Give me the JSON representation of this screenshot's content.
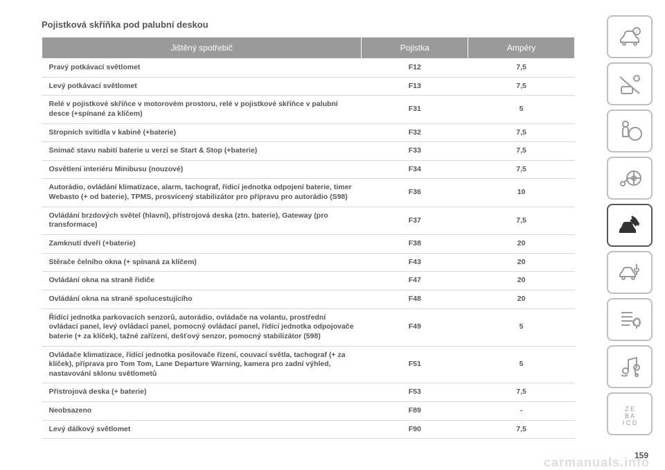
{
  "title": "Pojistková skříňka pod palubní deskou",
  "headers": {
    "device": "Jištěný spotřebič",
    "fuse": "Pojistka",
    "amp": "Ampéry"
  },
  "rows": [
    {
      "device": "Pravý potkávací světlomet",
      "fuse": "F12",
      "amp": "7,5"
    },
    {
      "device": "Levý potkávací světlomet",
      "fuse": "F13",
      "amp": "7,5"
    },
    {
      "device": "Relé v pojistkové skříňce v motorovém prostoru, relé v pojistkové skříňce v palubní desce (+spínané za klíčem)",
      "fuse": "F31",
      "amp": "5"
    },
    {
      "device": "Stropních svítidla v kabině (+baterie)",
      "fuse": "F32",
      "amp": "7,5"
    },
    {
      "device": "Snímač stavu nabití baterie u verzí se Start & Stop (+baterie)",
      "fuse": "F33",
      "amp": "7,5"
    },
    {
      "device": "Osvětlení interiéru Minibusu (nouzové)",
      "fuse": "F34",
      "amp": "7,5"
    },
    {
      "device": "Autorádio, ovládání klimatizace, alarm, tachograf, řídicí jednotka odpojení baterie, timer Webasto (+ od baterie), TPMS, prosvícený stabilizátor pro přípravu pro autorádio (S98)",
      "fuse": "F36",
      "amp": "10"
    },
    {
      "device": "Ovládání brzdových světel (hlavní), přístrojová deska (ztn. baterie), Gateway (pro transformace)",
      "fuse": "F37",
      "amp": "7,5"
    },
    {
      "device": "Zamknutí dveří (+baterie)",
      "fuse": "F38",
      "amp": "20"
    },
    {
      "device": "Stěrače čelního okna (+ spínaná za klíčem)",
      "fuse": "F43",
      "amp": "20"
    },
    {
      "device": "Ovládání okna na straně řidiče",
      "fuse": "F47",
      "amp": "20"
    },
    {
      "device": "Ovládání okna na straně spolucestujícího",
      "fuse": "F48",
      "amp": "20"
    },
    {
      "device": "Řídící jednotka parkovacích senzorů, autorádio, ovládače na volantu, prostřední ovládací panel, levý ovládací panel, pomocný ovládací panel, řídící jednotka odpojovače baterie (+ za klíček), tažné zařízení, dešťový senzor, pomocný stabilizátor (598)",
      "fuse": "F49",
      "amp": "5"
    },
    {
      "device": "Ovládače klimatizace, řídící jednotka posilovače řízení, couvací světla, tachograf (+ za klíček), příprava pro Tom Tom, Lane Departure Warning, kamera pro zadní výhled, nastavování sklonu světlometů",
      "fuse": "F51",
      "amp": "5"
    },
    {
      "device": "Přístrojová deska (+ baterie)",
      "fuse": "F53",
      "amp": "7,5"
    },
    {
      "device": "Neobsazeno",
      "fuse": "F89",
      "amp": "-"
    },
    {
      "device": "Levý dálkový světlomet",
      "fuse": "F90",
      "amp": "7,5"
    }
  ],
  "page_number": "159",
  "watermark": "carmanuals.info",
  "icons": [
    {
      "name": "car-info-icon",
      "active": false
    },
    {
      "name": "seatbelt-icon",
      "active": false
    },
    {
      "name": "airbag-icon",
      "active": false
    },
    {
      "name": "steering-key-icon",
      "active": false
    },
    {
      "name": "crash-icon",
      "active": true
    },
    {
      "name": "car-service-icon",
      "active": false
    },
    {
      "name": "settings-list-icon",
      "active": false
    },
    {
      "name": "audio-media-icon",
      "active": false
    },
    {
      "name": "index-icon",
      "active": false
    }
  ]
}
